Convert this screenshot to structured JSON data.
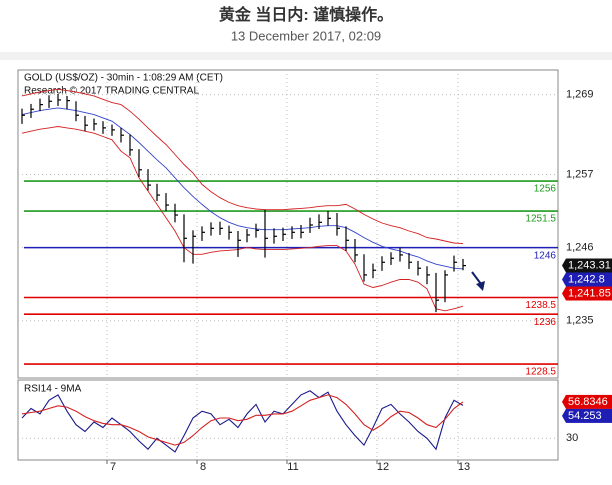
{
  "header": {
    "title": "黄金 当日内: 谨慎操作。",
    "subtitle": "13 December 2017, 02:09"
  },
  "chart_data": [
    {
      "type": "ohlc",
      "title": "GOLD (US$/OZ) - 30min - 1:08:29 AM (CET)",
      "subtitle": "Research © 2017 TRADING CENTRAL",
      "color": "#000000",
      "ylim": [
        1226.4,
        1272.7
      ],
      "yticks": [
        {
          "value": 1269,
          "label": "1,269"
        },
        {
          "value": 1257,
          "label": "1,257"
        },
        {
          "value": 1246,
          "label": "1,246"
        },
        {
          "value": 1235,
          "label": "1,235"
        }
      ],
      "grid": true,
      "high": [
        1266.9,
        1267.6,
        1268.4,
        1268.9,
        1269.1,
        1268.8,
        1268.0,
        1265.8,
        1265.4,
        1265.0,
        1264.5,
        1264.0,
        1263.0,
        1260.8,
        1257.8,
        1255.6,
        1254.2,
        1252.6,
        1251.0,
        1248.6,
        1249.2,
        1249.8,
        1249.9,
        1249.3,
        1248.5,
        1248.8,
        1249.6,
        1251.7,
        1248.9,
        1249.0,
        1249.2,
        1249.4,
        1250.5,
        1251.0,
        1251.5,
        1251.2,
        1249.2,
        1247.3,
        1245.0,
        1243.6,
        1244.7,
        1245.3,
        1246.0,
        1245.2,
        1244.0,
        1243.2,
        1242.2,
        1242.6,
        1244.8,
        1244.3
      ],
      "low": [
        1264.6,
        1265.5,
        1266.5,
        1267.0,
        1267.3,
        1266.8,
        1265.0,
        1263.5,
        1263.6,
        1263.1,
        1262.8,
        1261.8,
        1259.8,
        1256.6,
        1254.6,
        1253.0,
        1251.5,
        1249.8,
        1243.8,
        1243.6,
        1247.0,
        1247.8,
        1247.9,
        1247.2,
        1244.6,
        1246.8,
        1247.5,
        1244.5,
        1246.6,
        1247.0,
        1247.3,
        1247.4,
        1248.2,
        1248.8,
        1249.3,
        1247.8,
        1245.5,
        1243.8,
        1240.9,
        1241.4,
        1242.5,
        1243.4,
        1243.9,
        1242.8,
        1241.8,
        1240.5,
        1236.3,
        1237.8,
        1242.4,
        1242.6
      ],
      "close": [
        1265.9,
        1266.8,
        1267.5,
        1268.0,
        1268.2,
        1268.1,
        1265.9,
        1264.4,
        1264.6,
        1264.0,
        1263.7,
        1262.9,
        1260.7,
        1257.7,
        1255.4,
        1253.9,
        1252.4,
        1250.9,
        1247.4,
        1247.7,
        1248.3,
        1248.9,
        1248.9,
        1248.3,
        1247.1,
        1247.9,
        1248.6,
        1247.4,
        1247.7,
        1248.0,
        1248.3,
        1248.3,
        1249.4,
        1249.8,
        1250.4,
        1248.9,
        1247.1,
        1244.9,
        1241.9,
        1242.6,
        1243.8,
        1244.4,
        1244.9,
        1243.8,
        1242.9,
        1241.9,
        1238.1,
        1241.9,
        1243.8,
        1243.3
      ],
      "overlays": [
        {
          "color": "#d42020",
          "values": [
            1268.8,
            1269.1,
            1269.4,
            1269.6,
            1269.8,
            1269.6,
            1269.4,
            1269.1,
            1268.8,
            1268.3,
            1267.8,
            1267.5,
            1266.5,
            1265.3,
            1264.0,
            1262.7,
            1261.5,
            1260.0,
            1258.5,
            1257.2,
            1255.5,
            1254.4,
            1253.5,
            1252.8,
            1252.3,
            1252.0,
            1251.8,
            1251.7,
            1251.7,
            1251.7,
            1251.8,
            1251.9,
            1252.0,
            1252.2,
            1252.3,
            1252.3,
            1252.5,
            1251.8,
            1251.0,
            1250.3,
            1249.7,
            1249.3,
            1249.0,
            1248.5,
            1248.1,
            1247.5,
            1247.3,
            1247.0,
            1246.7,
            1246.6
          ]
        },
        {
          "color": "#d42020",
          "values": [
            1263.2,
            1263.5,
            1263.8,
            1264.0,
            1264.2,
            1264.0,
            1263.8,
            1263.5,
            1263.2,
            1262.7,
            1262.2,
            1260.5,
            1259.5,
            1256.5,
            1254.5,
            1252.5,
            1250.5,
            1248.5,
            1246.0,
            1245.0,
            1245.0,
            1245.3,
            1245.5,
            1245.6,
            1245.7,
            1246.0,
            1245.8,
            1245.7,
            1245.7,
            1245.7,
            1245.8,
            1245.9,
            1246.0,
            1246.2,
            1246.3,
            1246.3,
            1245.5,
            1243.5,
            1240.5,
            1240.0,
            1240.3,
            1240.8,
            1241.2,
            1241.2,
            1240.8,
            1239.8,
            1236.8,
            1236.5,
            1236.8,
            1237.2
          ]
        },
        {
          "color": "#3344cc",
          "values": [
            1266.0,
            1266.3,
            1266.6,
            1266.8,
            1267.0,
            1266.8,
            1266.6,
            1266.3,
            1266.0,
            1265.5,
            1265.0,
            1264.0,
            1263.0,
            1261.8,
            1260.5,
            1259.2,
            1258.0,
            1256.5,
            1255.0,
            1253.7,
            1252.5,
            1251.4,
            1250.5,
            1249.8,
            1249.3,
            1249.0,
            1248.8,
            1248.7,
            1248.7,
            1248.7,
            1248.8,
            1248.9,
            1249.0,
            1249.2,
            1249.3,
            1249.3,
            1249.0,
            1248.3,
            1247.5,
            1246.8,
            1246.2,
            1245.8,
            1245.5,
            1245.0,
            1244.6,
            1244.0,
            1243.5,
            1243.2,
            1242.9,
            1242.8
          ]
        }
      ],
      "levels": [
        {
          "value": 1256,
          "color": "#1f9a1f"
        },
        {
          "value": 1251.5,
          "color": "#1f9a1f"
        },
        {
          "value": 1246,
          "color": "#1e1eb4"
        },
        {
          "value": 1238.5,
          "color": "#e00000"
        },
        {
          "value": 1236,
          "color": "#e00000"
        },
        {
          "value": 1228.5,
          "color": "#e00000"
        }
      ],
      "tags": [
        {
          "value": 1243.31,
          "label": "1,243.31",
          "color": "#111111"
        },
        {
          "value": 1242.8,
          "label": "1,242.8",
          "color": "#1e1eb4"
        },
        {
          "value": 1241.85,
          "label": "1,241.85",
          "color": "#e00000"
        }
      ]
    },
    {
      "type": "line",
      "title": "RSI14 - 9MA",
      "categories": [
        null,
        null,
        null,
        null,
        null,
        null,
        null,
        null,
        null,
        null,
        "7",
        null,
        null,
        null,
        null,
        null,
        null,
        null,
        null,
        null,
        "8",
        null,
        null,
        null,
        null,
        null,
        null,
        null,
        null,
        null,
        "11",
        null,
        null,
        null,
        null,
        null,
        null,
        null,
        null,
        null,
        "12",
        null,
        null,
        null,
        null,
        null,
        null,
        null,
        null,
        "13"
      ],
      "ylim": [
        14,
        73
      ],
      "yticks": [
        30
      ],
      "grid": true,
      "series": [
        {
          "color": "#1a1a8c",
          "values": [
            45,
            52,
            48,
            58,
            62,
            50,
            40,
            35,
            42,
            38,
            45,
            40,
            35,
            28,
            22,
            30,
            25,
            20,
            32,
            45,
            50,
            48,
            40,
            44,
            38,
            48,
            55,
            42,
            50,
            48,
            55,
            62,
            65,
            60,
            64,
            50,
            40,
            32,
            25,
            38,
            52,
            55,
            48,
            42,
            35,
            30,
            22,
            45,
            58,
            54.253
          ]
        },
        {
          "color": "#d42020",
          "values": [
            48,
            49,
            50,
            52,
            54,
            53,
            50,
            46,
            43,
            41,
            40,
            40,
            38,
            35,
            31,
            29,
            27,
            25,
            27,
            32,
            38,
            43,
            45,
            45,
            43,
            44,
            47,
            47,
            48,
            48,
            50,
            54,
            58,
            60,
            62,
            60,
            55,
            48,
            40,
            36,
            40,
            46,
            50,
            49,
            45,
            40,
            38,
            44,
            52,
            56.8346
          ]
        }
      ],
      "tags": [
        {
          "value": 56.8346,
          "label": "56.8346",
          "color": "#e00000"
        },
        {
          "value": 54.253,
          "label": "54.253",
          "color": "#1e1eb4"
        }
      ]
    }
  ]
}
